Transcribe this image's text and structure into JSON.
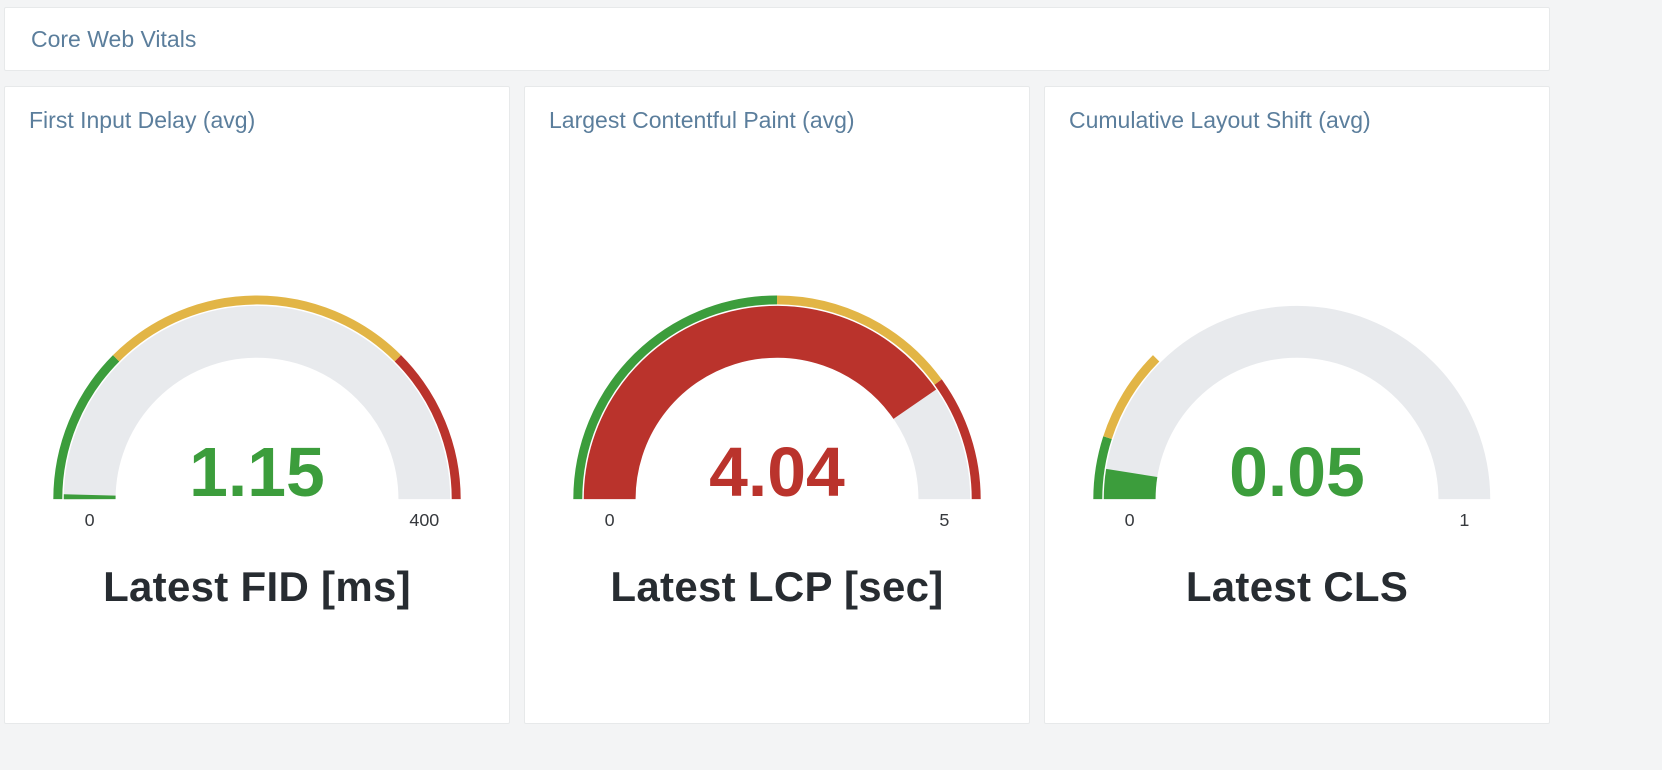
{
  "header": {
    "title": "Core Web Vitals"
  },
  "colors": {
    "green": "#3c9d3c",
    "yellow": "#e2b546",
    "red": "#ba332c",
    "track": "#e8eaed",
    "title_blue": "#5b7e9c",
    "text_dark": "#272c31"
  },
  "chart_data": [
    {
      "type": "gauge",
      "title": "First Input Delay (avg)",
      "value": 1.15,
      "value_display": "1.15",
      "value_color": "green",
      "min": 0,
      "max": 400,
      "min_label": "0",
      "max_label": "400",
      "unit_label": "Latest FID [ms]",
      "thresholds": [
        {
          "from": 0,
          "to": 100,
          "color": "green"
        },
        {
          "from": 100,
          "to": 300,
          "color": "yellow"
        },
        {
          "from": 300,
          "to": 400,
          "color": "red"
        }
      ]
    },
    {
      "type": "gauge",
      "title": "Largest Contentful Paint (avg)",
      "value": 4.04,
      "value_display": "4.04",
      "value_color": "red",
      "min": 0,
      "max": 5,
      "min_label": "0",
      "max_label": "5",
      "unit_label": "Latest LCP [sec]",
      "thresholds": [
        {
          "from": 0,
          "to": 2.5,
          "color": "green"
        },
        {
          "from": 2.5,
          "to": 4,
          "color": "yellow"
        },
        {
          "from": 4,
          "to": 5,
          "color": "red"
        }
      ]
    },
    {
      "type": "gauge",
      "title": "Cumulative Layout Shift (avg)",
      "value": 0.05,
      "value_display": "0.05",
      "value_color": "green",
      "min": 0,
      "max": 1,
      "min_label": "0",
      "max_label": "1",
      "unit_label": "Latest CLS",
      "thresholds": [
        {
          "from": 0,
          "to": 0.1,
          "color": "green"
        },
        {
          "from": 0.1,
          "to": 0.25,
          "color": "yellow"
        }
      ]
    }
  ]
}
